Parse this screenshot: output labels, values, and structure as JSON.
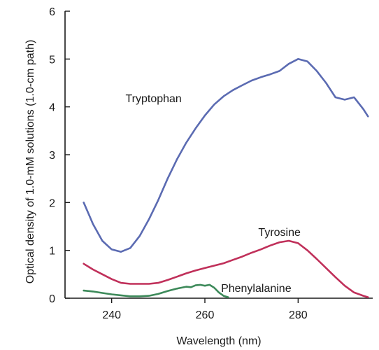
{
  "chart_data": {
    "type": "line",
    "title": "",
    "xlabel": "Wavelength (nm)",
    "ylabel": "Optical density of 1.0-mM solutions (1.0-cm path)",
    "xlim": [
      230,
      296
    ],
    "ylim": [
      0,
      6
    ],
    "xticks": [
      240,
      260,
      280
    ],
    "yticks": [
      0,
      1,
      2,
      3,
      4,
      5,
      6
    ],
    "grid": false,
    "legend": "none",
    "series": [
      {
        "name": "Tryptophan",
        "color": "#5b6bb2",
        "label_at": {
          "x": 249,
          "y": 4.1
        },
        "x": [
          234,
          236,
          238,
          240,
          242,
          244,
          246,
          248,
          250,
          252,
          254,
          256,
          258,
          260,
          262,
          264,
          266,
          268,
          270,
          272,
          274,
          276,
          278,
          280,
          282,
          284,
          286,
          288,
          290,
          292,
          294,
          295
        ],
        "y": [
          2.0,
          1.55,
          1.2,
          1.02,
          0.97,
          1.05,
          1.3,
          1.65,
          2.05,
          2.5,
          2.9,
          3.25,
          3.55,
          3.82,
          4.05,
          4.22,
          4.35,
          4.45,
          4.55,
          4.62,
          4.68,
          4.75,
          4.9,
          5.0,
          4.95,
          4.75,
          4.5,
          4.2,
          4.15,
          4.2,
          3.95,
          3.8
        ]
      },
      {
        "name": "Tyrosine",
        "color": "#c0305a",
        "label_at": {
          "x": 276,
          "y": 1.3
        },
        "x": [
          234,
          236,
          238,
          240,
          242,
          244,
          246,
          248,
          250,
          252,
          254,
          256,
          258,
          260,
          262,
          264,
          266,
          268,
          270,
          272,
          274,
          276,
          278,
          280,
          282,
          284,
          286,
          288,
          290,
          292,
          294,
          295
        ],
        "y": [
          0.72,
          0.6,
          0.5,
          0.4,
          0.32,
          0.3,
          0.3,
          0.3,
          0.32,
          0.38,
          0.45,
          0.52,
          0.58,
          0.63,
          0.68,
          0.73,
          0.8,
          0.87,
          0.95,
          1.02,
          1.1,
          1.17,
          1.2,
          1.15,
          1.0,
          0.82,
          0.63,
          0.44,
          0.26,
          0.12,
          0.05,
          0.02
        ]
      },
      {
        "name": "Phenylalanine",
        "color": "#3d8a5a",
        "label_at": {
          "x": 271,
          "y": 0.13
        },
        "x": [
          234,
          236,
          238,
          240,
          242,
          244,
          246,
          248,
          250,
          252,
          254,
          256,
          257,
          258,
          259,
          260,
          261,
          262,
          263,
          264,
          265
        ],
        "y": [
          0.16,
          0.14,
          0.11,
          0.08,
          0.06,
          0.04,
          0.04,
          0.05,
          0.09,
          0.15,
          0.2,
          0.24,
          0.23,
          0.27,
          0.28,
          0.26,
          0.28,
          0.22,
          0.12,
          0.05,
          0.02
        ]
      }
    ]
  }
}
